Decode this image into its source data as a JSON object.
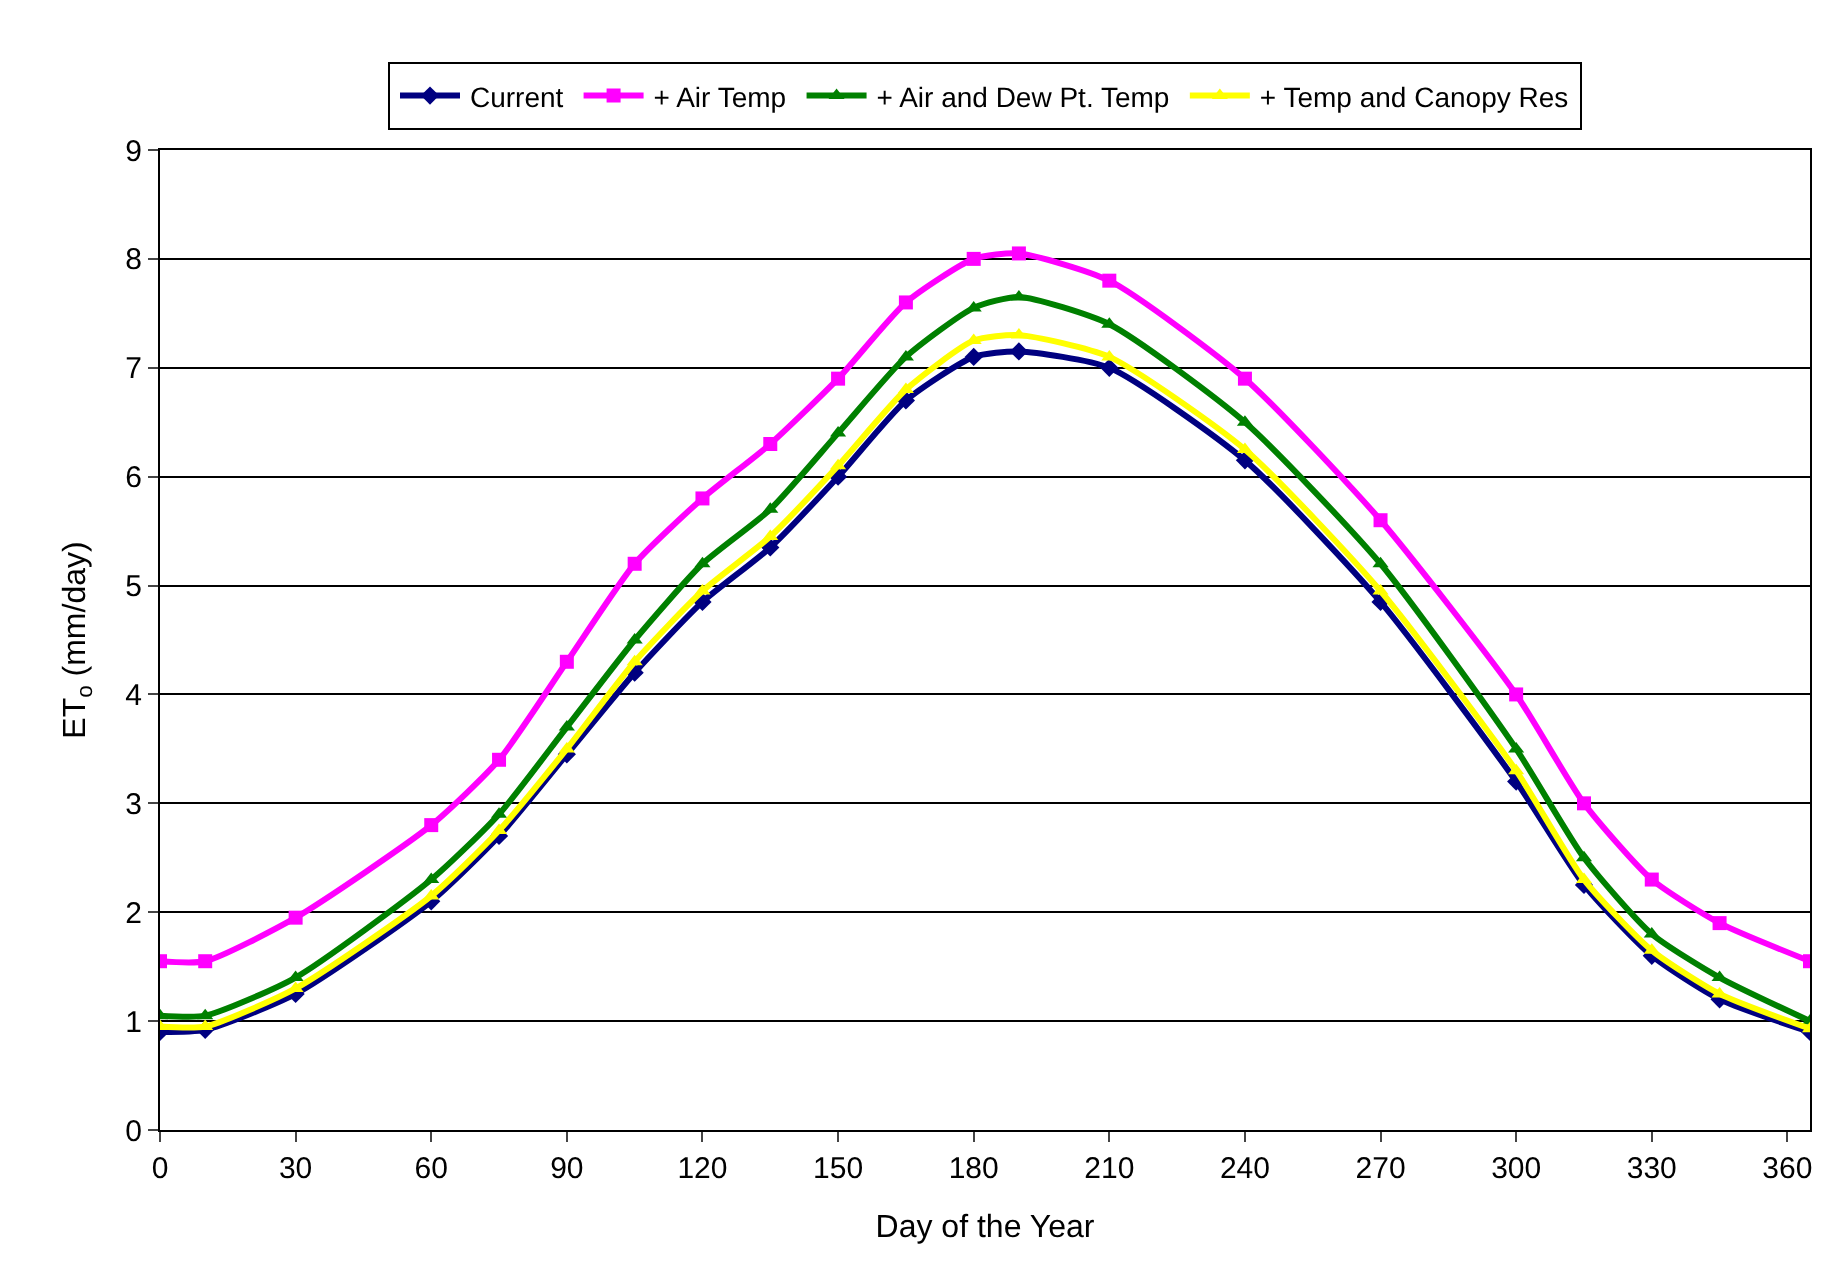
{
  "chart_data": {
    "type": "line",
    "xlabel": "Day of the Year",
    "ylabel": "ET$_{o}$ (mm/day)",
    "x": [
      0,
      10,
      30,
      60,
      75,
      90,
      105,
      120,
      135,
      150,
      165,
      180,
      190,
      210,
      240,
      270,
      300,
      315,
      330,
      345,
      365
    ],
    "xlim": [
      0,
      365
    ],
    "xticks": [
      0,
      30,
      60,
      90,
      120,
      150,
      180,
      210,
      240,
      270,
      300,
      330,
      360
    ],
    "ylim": [
      0,
      9
    ],
    "yticks": [
      0,
      1,
      2,
      3,
      4,
      5,
      6,
      7,
      8,
      9
    ],
    "grid": "y",
    "legend": "top",
    "series": [
      {
        "name": "Current",
        "color": "#000080",
        "marker": "diamond",
        "values": [
          0.9,
          0.92,
          1.25,
          2.1,
          2.7,
          3.45,
          4.2,
          4.85,
          5.35,
          6.0,
          6.7,
          7.1,
          7.15,
          7.0,
          6.15,
          4.85,
          3.2,
          2.25,
          1.6,
          1.2,
          0.9
        ]
      },
      {
        "name": "+ Air Temp",
        "color": "#ff00ff",
        "marker": "square",
        "values": [
          1.55,
          1.55,
          1.95,
          2.8,
          3.4,
          4.3,
          5.2,
          5.8,
          6.3,
          6.9,
          7.6,
          8.0,
          8.05,
          7.8,
          6.9,
          5.6,
          4.0,
          3.0,
          2.3,
          1.9,
          1.55
        ]
      },
      {
        "name": "+ Air and Dew Pt. Temp",
        "color": "#008000",
        "marker": "triangle",
        "values": [
          1.05,
          1.05,
          1.4,
          2.3,
          2.9,
          3.7,
          4.5,
          5.2,
          5.7,
          6.4,
          7.1,
          7.55,
          7.65,
          7.4,
          6.5,
          5.2,
          3.5,
          2.5,
          1.8,
          1.4,
          1.0
        ]
      },
      {
        "name": "+ Temp and Canopy Res",
        "color": "#ffff00",
        "marker": "triangle",
        "values": [
          0.95,
          0.95,
          1.3,
          2.15,
          2.75,
          3.5,
          4.3,
          4.95,
          5.45,
          6.1,
          6.8,
          7.25,
          7.3,
          7.1,
          6.25,
          4.95,
          3.3,
          2.3,
          1.65,
          1.25,
          0.93
        ]
      }
    ]
  }
}
